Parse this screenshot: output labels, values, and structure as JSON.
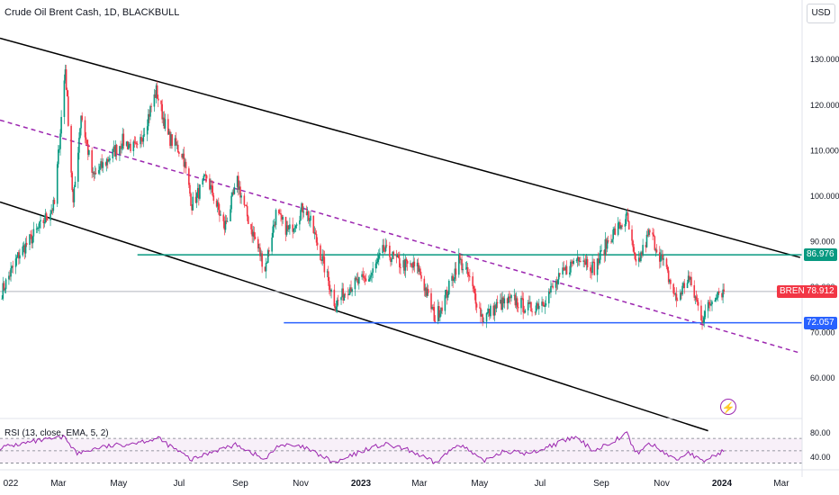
{
  "header": {
    "title": "Crude Oil Brent Cash, 1D, BLACKBULL"
  },
  "currency": "USD",
  "price_tags": {
    "resistance": {
      "value": "86.976",
      "color": "#089981"
    },
    "brent_symbol": "BRENT",
    "brent_value": "78.912",
    "brent_color": "#f23645",
    "support": {
      "value": "72.057",
      "color": "#2962ff"
    }
  },
  "rsi": {
    "label": "RSI (13, close, EMA, 5, 2)",
    "ticks": [
      "80.00",
      "40.00"
    ],
    "color": "#9c27b0"
  },
  "icons": {
    "alert": "lightning-icon"
  },
  "chart_data": {
    "type": "candlestick",
    "title": "Crude Oil Brent Cash, 1D, BLACKBULL",
    "y_ticks": [
      130,
      120,
      110,
      100,
      90,
      80,
      70,
      60
    ],
    "y_tick_labels": [
      "130.000",
      "120.000",
      "110.000",
      "100.000",
      "90.000",
      "80.000",
      "70.000",
      "60.000"
    ],
    "ylim": [
      51,
      143
    ],
    "x_tick_labels": [
      "022",
      "Mar",
      "May",
      "Jul",
      "Sep",
      "Nov",
      "2023",
      "Mar",
      "May",
      "Jul",
      "Sep",
      "Nov",
      "2024",
      "Mar"
    ],
    "x_ticks": [
      "2022-01-01",
      "2022-03-01",
      "2022-05-01",
      "2022-07-01",
      "2022-09-01",
      "2022-11-01",
      "2023-01-01",
      "2023-03-01",
      "2023-05-01",
      "2023-07-01",
      "2023-09-01",
      "2023-11-01",
      "2024-01-01",
      "2024-03-01"
    ],
    "xlim": [
      "2022-01-01",
      "2024-03-22"
    ],
    "up_color": "#089981",
    "down_color": "#f23645",
    "close_path": [
      [
        "2022-01-01",
        78
      ],
      [
        "2022-01-20",
        87
      ],
      [
        "2022-02-10",
        93
      ],
      [
        "2022-02-25",
        98
      ],
      [
        "2022-03-08",
        128
      ],
      [
        "2022-03-16",
        98
      ],
      [
        "2022-03-24",
        118
      ],
      [
        "2022-04-05",
        104
      ],
      [
        "2022-04-20",
        108
      ],
      [
        "2022-05-05",
        112
      ],
      [
        "2022-05-20",
        110
      ],
      [
        "2022-06-08",
        123
      ],
      [
        "2022-06-20",
        113
      ],
      [
        "2022-07-05",
        109
      ],
      [
        "2022-07-14",
        98
      ],
      [
        "2022-07-29",
        104
      ],
      [
        "2022-08-16",
        93
      ],
      [
        "2022-08-29",
        103
      ],
      [
        "2022-09-10",
        94
      ],
      [
        "2022-09-26",
        84
      ],
      [
        "2022-10-07",
        96
      ],
      [
        "2022-10-20",
        92
      ],
      [
        "2022-11-05",
        98
      ],
      [
        "2022-11-20",
        88
      ],
      [
        "2022-12-06",
        76
      ],
      [
        "2022-12-20",
        80
      ],
      [
        "2023-01-10",
        82
      ],
      [
        "2023-01-24",
        88
      ],
      [
        "2023-02-10",
        85
      ],
      [
        "2023-02-28",
        84
      ],
      [
        "2023-03-17",
        73
      ],
      [
        "2023-03-28",
        78
      ],
      [
        "2023-04-10",
        86
      ],
      [
        "2023-04-20",
        82
      ],
      [
        "2023-05-04",
        73
      ],
      [
        "2023-05-20",
        76
      ],
      [
        "2023-06-05",
        77
      ],
      [
        "2023-06-20",
        75
      ],
      [
        "2023-07-05",
        77
      ],
      [
        "2023-07-25",
        83
      ],
      [
        "2023-08-10",
        87
      ],
      [
        "2023-08-25",
        84
      ],
      [
        "2023-09-10",
        91
      ],
      [
        "2023-09-27",
        95
      ],
      [
        "2023-10-06",
        84
      ],
      [
        "2023-10-20",
        92
      ],
      [
        "2023-11-03",
        85
      ],
      [
        "2023-11-16",
        77
      ],
      [
        "2023-11-28",
        82
      ],
      [
        "2023-12-12",
        73
      ],
      [
        "2023-12-27",
        79
      ],
      [
        "2024-01-03",
        78.912
      ]
    ],
    "lines": [
      {
        "name": "upper-channel",
        "color": "#000000",
        "style": "solid",
        "from": [
          "2022-01-01",
          134.6
        ],
        "to": [
          "2024-03-20",
          86.4
        ]
      },
      {
        "name": "lower-channel",
        "color": "#000000",
        "style": "solid",
        "from": [
          "2022-01-01",
          98.6
        ],
        "to": [
          "2023-12-18",
          48.3
        ]
      },
      {
        "name": "mid-channel",
        "color": "#9c27b0",
        "style": "dashed",
        "from": [
          "2022-01-01",
          116.6
        ],
        "to": [
          "2024-03-20",
          65.4
        ]
      },
      {
        "name": "resistance",
        "color": "#089981",
        "style": "solid",
        "value": 86.976,
        "from_date": "2022-05-20"
      },
      {
        "name": "support",
        "color": "#2962ff",
        "style": "solid",
        "value": 72.057,
        "from_date": "2022-10-15"
      },
      {
        "name": "last-price",
        "color": "#b2b5be",
        "style": "solid",
        "value": 78.912,
        "from_date": "2022-01-01"
      }
    ],
    "rsi_scale": {
      "ylim": [
        25,
        95
      ],
      "bands": [
        70,
        30
      ],
      "mid": 50
    },
    "rsi_path": [
      [
        "2022-01-01",
        55
      ],
      [
        "2022-02-05",
        65
      ],
      [
        "2022-03-08",
        72
      ],
      [
        "2022-03-20",
        45
      ],
      [
        "2022-04-10",
        55
      ],
      [
        "2022-05-05",
        60
      ],
      [
        "2022-06-10",
        70
      ],
      [
        "2022-07-14",
        35
      ],
      [
        "2022-08-05",
        50
      ],
      [
        "2022-08-29",
        60
      ],
      [
        "2022-09-26",
        35
      ],
      [
        "2022-10-10",
        60
      ],
      [
        "2022-11-05",
        55
      ],
      [
        "2022-12-06",
        30
      ],
      [
        "2023-01-10",
        55
      ],
      [
        "2023-01-26",
        60
      ],
      [
        "2023-02-20",
        50
      ],
      [
        "2023-03-17",
        30
      ],
      [
        "2023-04-10",
        62
      ],
      [
        "2023-05-04",
        33
      ],
      [
        "2023-05-25",
        50
      ],
      [
        "2023-06-20",
        45
      ],
      [
        "2023-07-15",
        60
      ],
      [
        "2023-08-05",
        72
      ],
      [
        "2023-08-25",
        50
      ],
      [
        "2023-09-27",
        78
      ],
      [
        "2023-10-06",
        45
      ],
      [
        "2023-10-20",
        62
      ],
      [
        "2023-11-16",
        35
      ],
      [
        "2023-11-28",
        48
      ],
      [
        "2023-12-12",
        32
      ],
      [
        "2024-01-03",
        50
      ]
    ]
  }
}
